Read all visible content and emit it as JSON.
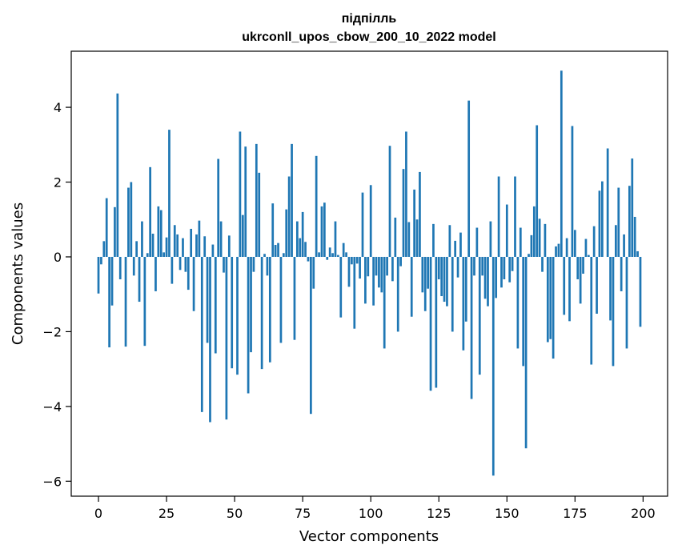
{
  "chart_data": {
    "type": "bar",
    "title": "підпілль",
    "subtitle": "ukrconll_upos_cbow_200_10_2022 model",
    "xlabel": "Vector components",
    "ylabel": "Components values",
    "xlim": [
      -10,
      209
    ],
    "ylim": [
      -6.4,
      5.5
    ],
    "x_ticks": [
      0,
      25,
      50,
      75,
      100,
      125,
      150,
      175,
      200
    ],
    "y_ticks": [
      -6,
      -4,
      -2,
      0,
      2,
      4
    ],
    "y_tick_labels": [
      "−6",
      "−4",
      "−2",
      "0",
      "2",
      "4"
    ],
    "grid": false,
    "legend": "none",
    "colors": {
      "bar": "#1f77b4",
      "axis": "#000000",
      "background": "#ffffff"
    },
    "x": [
      0,
      1,
      2,
      3,
      4,
      5,
      6,
      7,
      8,
      9,
      10,
      11,
      12,
      13,
      14,
      15,
      16,
      17,
      18,
      19,
      20,
      21,
      22,
      23,
      24,
      25,
      26,
      27,
      28,
      29,
      30,
      31,
      32,
      33,
      34,
      35,
      36,
      37,
      38,
      39,
      40,
      41,
      42,
      43,
      44,
      45,
      46,
      47,
      48,
      49,
      50,
      51,
      52,
      53,
      54,
      55,
      56,
      57,
      58,
      59,
      60,
      61,
      62,
      63,
      64,
      65,
      66,
      67,
      68,
      69,
      70,
      71,
      72,
      73,
      74,
      75,
      76,
      77,
      78,
      79,
      80,
      81,
      82,
      83,
      84,
      85,
      86,
      87,
      88,
      89,
      90,
      91,
      92,
      93,
      94,
      95,
      96,
      97,
      98,
      99,
      100,
      101,
      102,
      103,
      104,
      105,
      106,
      107,
      108,
      109,
      110,
      111,
      112,
      113,
      114,
      115,
      116,
      117,
      118,
      119,
      120,
      121,
      122,
      123,
      124,
      125,
      126,
      127,
      128,
      129,
      130,
      131,
      132,
      133,
      134,
      135,
      136,
      137,
      138,
      139,
      140,
      141,
      142,
      143,
      144,
      145,
      146,
      147,
      148,
      149,
      150,
      151,
      152,
      153,
      154,
      155,
      156,
      157,
      158,
      159,
      160,
      161,
      162,
      163,
      164,
      165,
      166,
      167,
      168,
      169,
      170,
      171,
      172,
      173,
      174,
      175,
      176,
      177,
      178,
      179,
      180,
      181,
      182,
      183,
      184,
      185,
      186,
      187,
      188,
      189,
      190,
      191,
      192,
      193,
      194,
      195,
      196,
      197,
      198,
      199
    ],
    "values": [
      -0.98,
      -0.2,
      0.42,
      1.57,
      -2.42,
      -1.3,
      1.33,
      4.37,
      -0.6,
      0.0,
      -2.4,
      1.85,
      2.0,
      -0.5,
      0.42,
      -1.2,
      0.95,
      -2.38,
      0.1,
      2.4,
      0.62,
      -0.92,
      1.35,
      1.25,
      0.12,
      0.52,
      3.4,
      -0.72,
      0.85,
      0.6,
      -0.35,
      0.5,
      -0.4,
      -0.88,
      0.75,
      -1.45,
      0.6,
      0.97,
      -4.15,
      0.55,
      -2.3,
      -4.42,
      0.33,
      -2.58,
      2.62,
      0.95,
      -0.42,
      -4.35,
      0.57,
      -2.98,
      0.0,
      -3.15,
      3.35,
      1.12,
      2.95,
      -3.65,
      -2.55,
      -0.4,
      3.02,
      2.25,
      -3.0,
      0.08,
      -0.5,
      -2.82,
      1.43,
      0.32,
      0.37,
      -2.3,
      0.1,
      1.27,
      2.15,
      3.02,
      -2.22,
      0.95,
      0.5,
      1.2,
      0.4,
      -0.12,
      -4.2,
      -0.85,
      2.7,
      0.12,
      1.35,
      1.45,
      -0.08,
      0.25,
      0.1,
      0.95,
      0.05,
      -1.62,
      0.37,
      0.12,
      -0.8,
      -0.2,
      -1.92,
      -0.18,
      -0.58,
      1.72,
      -1.25,
      -0.52,
      1.92,
      -1.3,
      -0.5,
      -0.82,
      -0.95,
      -2.45,
      -0.5,
      2.97,
      -0.65,
      1.05,
      -2.0,
      -0.25,
      2.35,
      3.35,
      0.93,
      -1.6,
      1.8,
      1.0,
      2.27,
      -0.95,
      -1.45,
      -0.85,
      -3.58,
      0.88,
      -3.5,
      -0.6,
      -1.05,
      -1.2,
      -1.32,
      0.85,
      -2.0,
      0.43,
      -0.55,
      0.65,
      -2.5,
      -1.73,
      4.18,
      -3.8,
      -0.5,
      0.78,
      -3.15,
      -0.5,
      -1.12,
      -1.32,
      0.95,
      -5.85,
      -1.1,
      2.15,
      -0.82,
      -0.6,
      1.4,
      -0.68,
      -0.38,
      2.15,
      -2.45,
      0.78,
      -2.92,
      -5.12,
      0.08,
      0.58,
      1.35,
      3.52,
      1.02,
      -0.4,
      0.88,
      -2.28,
      -2.2,
      -2.72,
      0.28,
      0.35,
      4.98,
      -1.55,
      0.5,
      -1.72,
      3.5,
      0.72,
      -0.6,
      -1.25,
      -0.45,
      0.48,
      0.05,
      -2.88,
      0.82,
      -1.52,
      1.77,
      2.02,
      0.0,
      2.9,
      -1.7,
      -2.92,
      0.85,
      1.85,
      -0.92,
      0.6,
      -2.45,
      1.9,
      2.63,
      1.07,
      0.15,
      -1.87
    ]
  }
}
